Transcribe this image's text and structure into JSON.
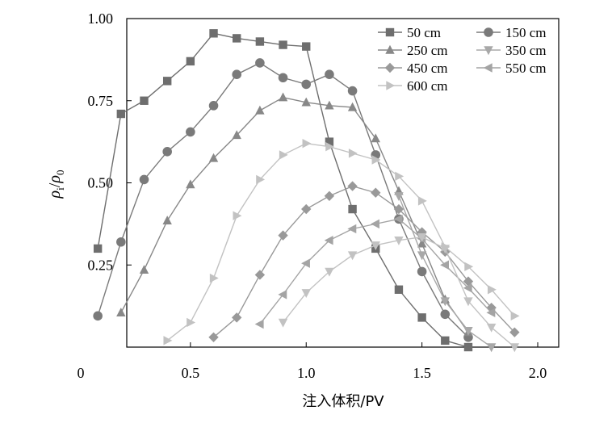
{
  "chart_data": {
    "type": "line",
    "xlabel": "注入体积/PV",
    "ylabel": {
      "main": "ρ",
      "sub1": "i",
      "slash": "/",
      "main2": "ρ",
      "sub2": "0"
    },
    "xlim": [
      0,
      2.2
    ],
    "ylim": [
      0,
      1.0
    ],
    "x_ticks": [
      {
        "value": 0,
        "label": "0"
      },
      {
        "value": 0.5,
        "label": "0.5"
      },
      {
        "value": 1.0,
        "label": "1.0"
      },
      {
        "value": 1.5,
        "label": "1.5"
      },
      {
        "value": 2.0,
        "label": "2.0"
      }
    ],
    "y_ticks": [
      {
        "value": 0.25,
        "label": "0.25"
      },
      {
        "value": 0.5,
        "label": "0.50"
      },
      {
        "value": 0.75,
        "label": "0.75"
      },
      {
        "value": 1.0,
        "label": "1.00"
      }
    ],
    "legend_position": "top-right",
    "series": [
      {
        "name": "50 cm",
        "marker": "square",
        "color": "#6e6e6e",
        "x": [
          0.1,
          0.2,
          0.3,
          0.4,
          0.5,
          0.6,
          0.7,
          0.8,
          0.9,
          1.0,
          1.1,
          1.2,
          1.3,
          1.4,
          1.5,
          1.6,
          1.7
        ],
        "y": [
          0.3,
          0.71,
          0.75,
          0.81,
          0.87,
          0.955,
          0.94,
          0.93,
          0.92,
          0.915,
          0.625,
          0.42,
          0.3,
          0.175,
          0.09,
          0.02,
          0.0
        ]
      },
      {
        "name": "150 cm",
        "marker": "circle",
        "color": "#7a7a7a",
        "x": [
          0.1,
          0.2,
          0.3,
          0.4,
          0.5,
          0.6,
          0.7,
          0.8,
          0.9,
          1.0,
          1.1,
          1.2,
          1.3,
          1.4,
          1.5,
          1.6,
          1.7
        ],
        "y": [
          0.095,
          0.32,
          0.51,
          0.595,
          0.655,
          0.735,
          0.83,
          0.865,
          0.82,
          0.8,
          0.83,
          0.78,
          0.585,
          0.39,
          0.23,
          0.1,
          0.03
        ]
      },
      {
        "name": "250 cm",
        "marker": "triangle-up",
        "color": "#888888",
        "x": [
          0.2,
          0.3,
          0.4,
          0.5,
          0.6,
          0.7,
          0.8,
          0.9,
          1.0,
          1.1,
          1.2,
          1.3,
          1.4,
          1.5,
          1.6,
          1.7
        ],
        "y": [
          0.105,
          0.235,
          0.385,
          0.495,
          0.575,
          0.645,
          0.72,
          0.76,
          0.745,
          0.735,
          0.73,
          0.635,
          0.475,
          0.315,
          0.145,
          0.045
        ]
      },
      {
        "name": "350 cm",
        "marker": "triangle-down",
        "color": "#a8a8a8",
        "x": [
          1.4,
          1.5,
          1.6,
          1.7,
          1.8
        ],
        "y": [
          0.46,
          0.28,
          0.14,
          0.05,
          0.0
        ]
      },
      {
        "name": "450 cm",
        "marker": "diamond",
        "color": "#999999",
        "x": [
          0.6,
          0.7,
          0.8,
          0.9,
          1.0,
          1.1,
          1.2,
          1.3,
          1.4,
          1.5,
          1.6,
          1.7,
          1.8,
          1.9
        ],
        "y": [
          0.03,
          0.09,
          0.22,
          0.34,
          0.42,
          0.46,
          0.49,
          0.47,
          0.42,
          0.35,
          0.29,
          0.2,
          0.12,
          0.045
        ]
      },
      {
        "name": "550 cm",
        "marker": "triangle-left",
        "color": "#a4a4a4",
        "x": [
          0.8,
          0.9,
          1.0,
          1.1,
          1.2,
          1.3,
          1.4,
          1.5,
          1.6,
          1.7,
          1.8
        ],
        "y": [
          0.07,
          0.16,
          0.255,
          0.325,
          0.36,
          0.375,
          0.39,
          0.33,
          0.25,
          0.18,
          0.105
        ]
      },
      {
        "name": "600 cm",
        "marker": "triangle-right",
        "color": "#c2c2c2",
        "x": [
          0.4,
          0.5,
          0.6,
          0.7,
          0.8,
          0.9,
          1.0,
          1.1,
          1.2,
          1.3,
          1.4,
          1.5,
          1.6,
          1.7,
          1.8,
          1.9
        ],
        "y": [
          0.02,
          0.075,
          0.21,
          0.4,
          0.51,
          0.585,
          0.62,
          0.61,
          0.59,
          0.57,
          0.52,
          0.445,
          0.305,
          0.245,
          0.175,
          0.095
        ]
      }
    ],
    "extra_series": [
      {
        "ref": "350 cm",
        "marker": "triangle-down",
        "color": "#c2c2c2",
        "x": [
          0.9,
          1.0,
          1.1,
          1.2,
          1.3,
          1.4,
          1.5,
          1.6,
          1.7,
          1.8,
          1.9
        ],
        "y": [
          0.075,
          0.165,
          0.23,
          0.28,
          0.31,
          0.325,
          0.335,
          0.3,
          0.14,
          0.06,
          0.0
        ]
      }
    ]
  }
}
